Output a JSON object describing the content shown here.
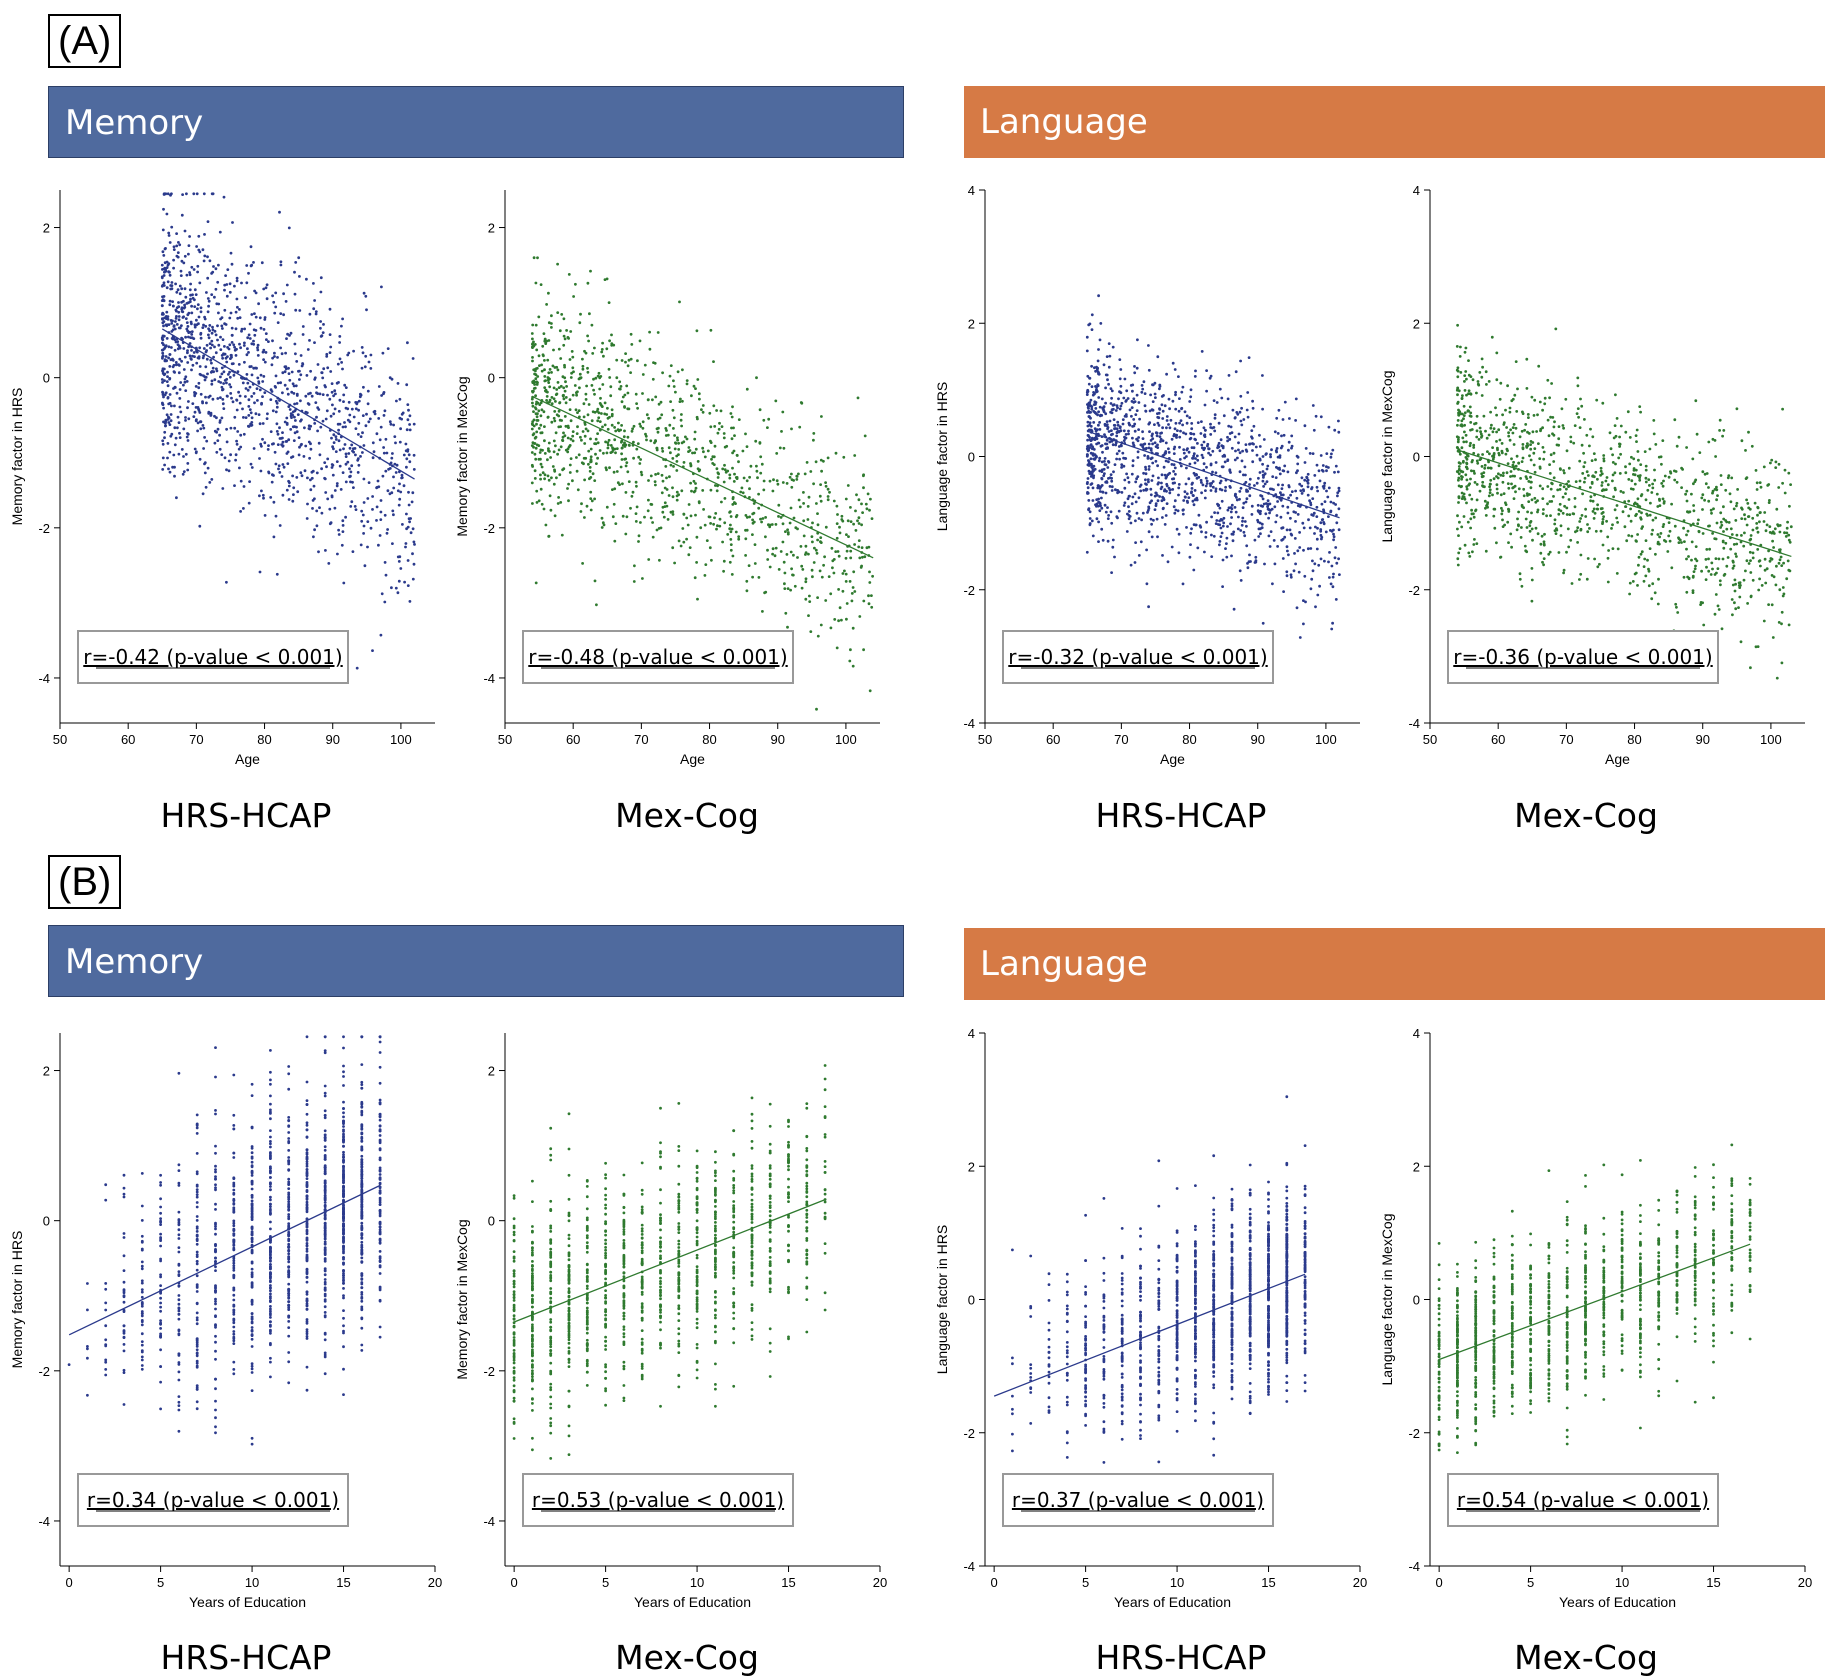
{
  "panels": [
    {
      "label": "(A)",
      "banners": {
        "memory": "Memory",
        "language": "Language"
      },
      "dataset_labels": [
        "HRS-HCAP",
        "Mex-Cog",
        "HRS-HCAP",
        "Mex-Cog"
      ]
    },
    {
      "label": "(B)",
      "banners": {
        "memory": "Memory",
        "language": "Language"
      },
      "dataset_labels": [
        "HRS-HCAP",
        "Mex-Cog",
        "HRS-HCAP",
        "Mex-Cog"
      ]
    }
  ],
  "colors": {
    "hrs": "#2b3a8c",
    "mexcog": "#2f7a2f",
    "memory_banner": "#4f6a9e",
    "language_banner": "#d67a45"
  },
  "chart_data": [
    {
      "type": "scatter",
      "panel": "A",
      "domain": "Memory",
      "dataset": "HRS-HCAP",
      "xlabel": "Age",
      "ylabel": "Memory factor in HRS",
      "xlim": [
        50,
        105
      ],
      "ylim": [
        -4.6,
        2.5
      ],
      "xticks": [
        50,
        60,
        70,
        80,
        90,
        100
      ],
      "yticks": [
        -4,
        -2,
        0,
        2
      ],
      "x_range": [
        65,
        102
      ],
      "fit": {
        "x": [
          65,
          102
        ],
        "y": [
          0.65,
          -1.35
        ]
      },
      "spread": 0.85,
      "n_points": 1400,
      "color": "hrs",
      "annotation": "r=-0.42 (p-value < 0.001)"
    },
    {
      "type": "scatter",
      "panel": "A",
      "domain": "Memory",
      "dataset": "Mex-Cog",
      "xlabel": "Age",
      "ylabel": "Memory factor in MexCog",
      "xlim": [
        50,
        105
      ],
      "ylim": [
        -4.6,
        2.5
      ],
      "xticks": [
        50,
        60,
        70,
        80,
        90,
        100
      ],
      "yticks": [
        -4,
        -2,
        0,
        2
      ],
      "x_range": [
        54,
        104
      ],
      "fit": {
        "x": [
          54,
          104
        ],
        "y": [
          -0.25,
          -2.4
        ]
      },
      "spread": 0.75,
      "n_points": 1200,
      "color": "mexcog",
      "annotation": "r=-0.48 (p-value < 0.001)"
    },
    {
      "type": "scatter",
      "panel": "A",
      "domain": "Language",
      "dataset": "HRS-HCAP",
      "xlabel": "Age",
      "ylabel": "Language factor in HRS",
      "xlim": [
        50,
        105
      ],
      "ylim": [
        -4,
        4
      ],
      "xticks": [
        50,
        60,
        70,
        80,
        90,
        100
      ],
      "yticks": [
        -4,
        -2,
        0,
        2,
        4
      ],
      "x_range": [
        65,
        102
      ],
      "fit": {
        "x": [
          65,
          102
        ],
        "y": [
          0.38,
          -0.92
        ]
      },
      "spread": 0.7,
      "n_points": 1400,
      "color": "hrs",
      "annotation": "r=-0.32 (p-value < 0.001)"
    },
    {
      "type": "scatter",
      "panel": "A",
      "domain": "Language",
      "dataset": "Mex-Cog",
      "xlabel": "Age",
      "ylabel": "Language factor in MexCog",
      "xlim": [
        50,
        105
      ],
      "ylim": [
        -4,
        4
      ],
      "xticks": [
        50,
        60,
        70,
        80,
        90,
        100
      ],
      "yticks": [
        -4,
        -2,
        0,
        2,
        4
      ],
      "x_range": [
        54,
        103
      ],
      "fit": {
        "x": [
          54,
          103
        ],
        "y": [
          0.1,
          -1.5
        ]
      },
      "spread": 0.7,
      "n_points": 1200,
      "color": "mexcog",
      "annotation": "r=-0.36 (p-value < 0.001)"
    },
    {
      "type": "scatter",
      "panel": "B",
      "domain": "Memory",
      "dataset": "HRS-HCAP",
      "xlabel": "Years of Education",
      "ylabel": "Memory factor in HRS",
      "xlim": [
        -0.5,
        20
      ],
      "ylim": [
        -4.6,
        2.5
      ],
      "xticks": [
        0,
        5,
        10,
        15,
        20
      ],
      "yticks": [
        -4,
        -2,
        0,
        2
      ],
      "x_range": [
        0,
        17
      ],
      "discrete_x": true,
      "fit": {
        "x": [
          0,
          17
        ],
        "y": [
          -1.52,
          0.47
        ]
      },
      "spread": 0.9,
      "n_points": 1400,
      "color": "hrs",
      "annotation": "r=0.34 (p-value < 0.001)"
    },
    {
      "type": "scatter",
      "panel": "B",
      "domain": "Memory",
      "dataset": "Mex-Cog",
      "xlabel": "Years of Education",
      "ylabel": "Memory factor in MexCog",
      "xlim": [
        -0.5,
        20
      ],
      "ylim": [
        -4.6,
        2.5
      ],
      "xticks": [
        0,
        5,
        10,
        15,
        20
      ],
      "yticks": [
        -4,
        -2,
        0,
        2
      ],
      "x_range": [
        0,
        17
      ],
      "discrete_x": true,
      "fit": {
        "x": [
          0,
          17
        ],
        "y": [
          -1.35,
          0.28
        ]
      },
      "spread": 0.75,
      "n_points": 1200,
      "color": "mexcog",
      "annotation": "r=0.53 (p-value < 0.001)"
    },
    {
      "type": "scatter",
      "panel": "B",
      "domain": "Language",
      "dataset": "HRS-HCAP",
      "xlabel": "Years of Education",
      "ylabel": "Language factor in HRS",
      "xlim": [
        -0.5,
        20
      ],
      "ylim": [
        -4,
        4
      ],
      "xticks": [
        0,
        5,
        10,
        15,
        20
      ],
      "yticks": [
        -4,
        -2,
        0,
        2,
        4
      ],
      "x_range": [
        0,
        17
      ],
      "discrete_x": true,
      "fit": {
        "x": [
          0,
          17
        ],
        "y": [
          -1.45,
          0.38
        ]
      },
      "spread": 0.7,
      "n_points": 1400,
      "color": "hrs",
      "annotation": "r=0.37 (p-value < 0.001)"
    },
    {
      "type": "scatter",
      "panel": "B",
      "domain": "Language",
      "dataset": "Mex-Cog",
      "xlabel": "Years of Education",
      "ylabel": "Language factor in MexCog",
      "xlim": [
        -0.5,
        20
      ],
      "ylim": [
        -4,
        4
      ],
      "xticks": [
        0,
        5,
        10,
        15,
        20
      ],
      "yticks": [
        -4,
        -2,
        0,
        2,
        4
      ],
      "x_range": [
        0,
        17
      ],
      "discrete_x": true,
      "fit": {
        "x": [
          0,
          17
        ],
        "y": [
          -0.9,
          0.83
        ]
      },
      "spread": 0.65,
      "n_points": 1200,
      "color": "mexcog",
      "annotation": "r=0.54 (p-value < 0.001)"
    }
  ]
}
